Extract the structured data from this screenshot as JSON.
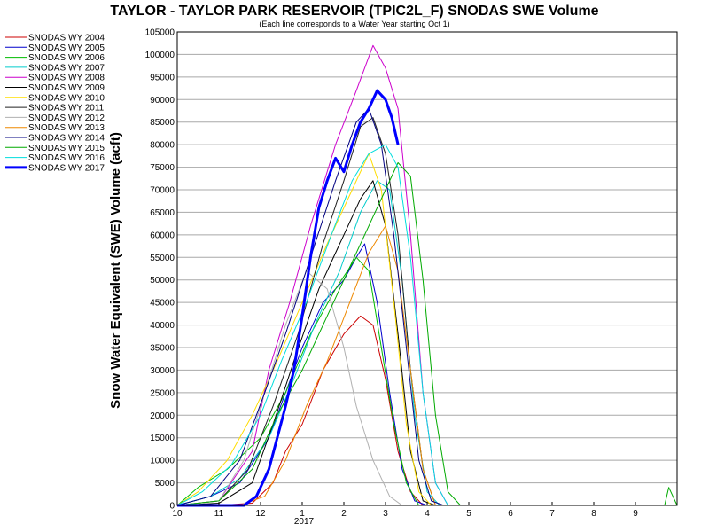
{
  "chart_data": {
    "type": "line",
    "title": "TAYLOR - TAYLOR PARK RESERVOIR (TPIC2L_F) SNODAS SWE Volume",
    "subtitle": "(Each line corresponds to a Water Year starting Oct 1)",
    "xlabel": "",
    "ylabel": "Snow Water Equivalent (SWE) Volume (acft)",
    "ylim": [
      0,
      105000
    ],
    "y_ticks": [
      0,
      5000,
      10000,
      15000,
      20000,
      25000,
      30000,
      35000,
      40000,
      45000,
      50000,
      55000,
      60000,
      65000,
      70000,
      75000,
      80000,
      85000,
      90000,
      95000,
      100000,
      105000
    ],
    "x_ticks": [
      "10",
      "11",
      "12",
      "1",
      "2",
      "3",
      "4",
      "5",
      "6",
      "7",
      "8",
      "9"
    ],
    "x_year_label": "2017",
    "grid": true,
    "legend_position": "left",
    "series": [
      {
        "name": "SNODAS WY 2004",
        "color": "#cc0000",
        "width": 1,
        "points": [
          [
            0,
            0
          ],
          [
            1,
            0
          ],
          [
            1.8,
            500
          ],
          [
            2.3,
            5000
          ],
          [
            2.6,
            12000
          ],
          [
            3,
            18000
          ],
          [
            3.5,
            30000
          ],
          [
            4,
            38000
          ],
          [
            4.4,
            42000
          ],
          [
            4.7,
            40000
          ],
          [
            5,
            28000
          ],
          [
            5.3,
            12000
          ],
          [
            5.6,
            3000
          ],
          [
            5.9,
            0
          ],
          [
            12,
            0
          ]
        ]
      },
      {
        "name": "SNODAS WY 2005",
        "color": "#0000cc",
        "width": 1,
        "points": [
          [
            0,
            0
          ],
          [
            0.8,
            2000
          ],
          [
            1.5,
            5000
          ],
          [
            2.2,
            15000
          ],
          [
            2.6,
            25000
          ],
          [
            3,
            35000
          ],
          [
            3.5,
            45000
          ],
          [
            4,
            50000
          ],
          [
            4.3,
            55000
          ],
          [
            4.5,
            58000
          ],
          [
            4.8,
            45000
          ],
          [
            5.1,
            25000
          ],
          [
            5.4,
            8000
          ],
          [
            5.7,
            1000
          ],
          [
            6,
            0
          ],
          [
            12,
            0
          ]
        ]
      },
      {
        "name": "SNODAS WY 2006",
        "color": "#00bb00",
        "width": 1,
        "points": [
          [
            0,
            0
          ],
          [
            0.5,
            4000
          ],
          [
            1.2,
            8000
          ],
          [
            2,
            15000
          ],
          [
            2.6,
            25000
          ],
          [
            3.2,
            38000
          ],
          [
            3.8,
            48000
          ],
          [
            4.3,
            55000
          ],
          [
            4.6,
            52000
          ],
          [
            4.9,
            35000
          ],
          [
            5.2,
            18000
          ],
          [
            5.5,
            5000
          ],
          [
            5.8,
            0
          ],
          [
            12,
            0
          ]
        ]
      },
      {
        "name": "SNODAS WY 2007",
        "color": "#00cccc",
        "width": 1,
        "points": [
          [
            0,
            0
          ],
          [
            0.8,
            2000
          ],
          [
            1.5,
            6000
          ],
          [
            2.2,
            15000
          ],
          [
            2.8,
            28000
          ],
          [
            3.3,
            40000
          ],
          [
            3.9,
            52000
          ],
          [
            4.4,
            65000
          ],
          [
            4.8,
            72000
          ],
          [
            5.1,
            70000
          ],
          [
            5.4,
            50000
          ],
          [
            5.7,
            20000
          ],
          [
            6,
            3000
          ],
          [
            6.3,
            0
          ],
          [
            12,
            0
          ]
        ]
      },
      {
        "name": "SNODAS WY 2008",
        "color": "#cc00cc",
        "width": 1,
        "points": [
          [
            0,
            0
          ],
          [
            1,
            1000
          ],
          [
            1.8,
            12000
          ],
          [
            2.2,
            30000
          ],
          [
            2.7,
            45000
          ],
          [
            3.2,
            62000
          ],
          [
            3.8,
            80000
          ],
          [
            4.3,
            92000
          ],
          [
            4.7,
            102000
          ],
          [
            5,
            97000
          ],
          [
            5.3,
            88000
          ],
          [
            5.6,
            60000
          ],
          [
            5.9,
            25000
          ],
          [
            6.2,
            5000
          ],
          [
            6.5,
            0
          ],
          [
            12,
            0
          ]
        ]
      },
      {
        "name": "SNODAS WY 2009",
        "color": "#000000",
        "width": 1,
        "points": [
          [
            0,
            0
          ],
          [
            1,
            500
          ],
          [
            1.8,
            5000
          ],
          [
            2.3,
            18000
          ],
          [
            2.8,
            32000
          ],
          [
            3.4,
            48000
          ],
          [
            4,
            60000
          ],
          [
            4.4,
            68000
          ],
          [
            4.7,
            72000
          ],
          [
            5,
            62000
          ],
          [
            5.3,
            38000
          ],
          [
            5.6,
            12000
          ],
          [
            5.9,
            1000
          ],
          [
            6.2,
            0
          ],
          [
            12,
            0
          ]
        ]
      },
      {
        "name": "SNODAS WY 2010",
        "color": "#ffdd00",
        "width": 1,
        "points": [
          [
            0,
            0
          ],
          [
            0.5,
            3000
          ],
          [
            1.2,
            10000
          ],
          [
            1.8,
            20000
          ],
          [
            2.4,
            32000
          ],
          [
            3,
            45000
          ],
          [
            3.6,
            58000
          ],
          [
            4.2,
            70000
          ],
          [
            4.6,
            78000
          ],
          [
            4.9,
            70000
          ],
          [
            5.2,
            45000
          ],
          [
            5.5,
            18000
          ],
          [
            5.8,
            3000
          ],
          [
            6.1,
            0
          ],
          [
            12,
            0
          ]
        ]
      },
      {
        "name": "SNODAS WY 2011",
        "color": "#222222",
        "width": 1,
        "points": [
          [
            0,
            0
          ],
          [
            1,
            1000
          ],
          [
            1.7,
            8000
          ],
          [
            2.3,
            22000
          ],
          [
            2.9,
            38000
          ],
          [
            3.5,
            58000
          ],
          [
            4,
            72000
          ],
          [
            4.4,
            84000
          ],
          [
            4.7,
            86000
          ],
          [
            5,
            78000
          ],
          [
            5.3,
            60000
          ],
          [
            5.6,
            30000
          ],
          [
            5.9,
            8000
          ],
          [
            6.2,
            0
          ],
          [
            12,
            0
          ]
        ]
      },
      {
        "name": "SNODAS WY 2012",
        "color": "#b0b0b0",
        "width": 1,
        "points": [
          [
            0,
            0
          ],
          [
            1,
            1000
          ],
          [
            1.6,
            10000
          ],
          [
            2.1,
            25000
          ],
          [
            2.6,
            40000
          ],
          [
            3.1,
            52000
          ],
          [
            3.6,
            48000
          ],
          [
            4,
            35000
          ],
          [
            4.3,
            22000
          ],
          [
            4.7,
            10000
          ],
          [
            5.1,
            2000
          ],
          [
            5.4,
            0
          ],
          [
            12,
            0
          ]
        ]
      },
      {
        "name": "SNODAS WY 2013",
        "color": "#ee8800",
        "width": 1,
        "points": [
          [
            0,
            0
          ],
          [
            1.5,
            0
          ],
          [
            2.1,
            2000
          ],
          [
            2.6,
            10000
          ],
          [
            3.1,
            22000
          ],
          [
            3.6,
            32000
          ],
          [
            4.1,
            44000
          ],
          [
            4.6,
            56000
          ],
          [
            5,
            62000
          ],
          [
            5.3,
            52000
          ],
          [
            5.6,
            30000
          ],
          [
            5.9,
            8000
          ],
          [
            6.2,
            0
          ],
          [
            12,
            0
          ]
        ]
      },
      {
        "name": "SNODAS WY 2014",
        "color": "#000080",
        "width": 1,
        "points": [
          [
            0,
            0
          ],
          [
            0.8,
            2000
          ],
          [
            1.5,
            10000
          ],
          [
            2.1,
            25000
          ],
          [
            2.6,
            38000
          ],
          [
            3.2,
            55000
          ],
          [
            3.8,
            72000
          ],
          [
            4.3,
            85000
          ],
          [
            4.6,
            88000
          ],
          [
            4.9,
            80000
          ],
          [
            5.2,
            60000
          ],
          [
            5.5,
            35000
          ],
          [
            5.8,
            10000
          ],
          [
            6.1,
            1000
          ],
          [
            6.4,
            0
          ],
          [
            12,
            0
          ]
        ]
      },
      {
        "name": "SNODAS WY 2015",
        "color": "#00aa00",
        "width": 1,
        "points": [
          [
            0,
            0
          ],
          [
            1,
            1000
          ],
          [
            1.8,
            8000
          ],
          [
            2.4,
            20000
          ],
          [
            3,
            30000
          ],
          [
            3.6,
            42000
          ],
          [
            4.1,
            52000
          ],
          [
            4.6,
            62000
          ],
          [
            5,
            70000
          ],
          [
            5.3,
            76000
          ],
          [
            5.6,
            73000
          ],
          [
            5.9,
            50000
          ],
          [
            6.2,
            20000
          ],
          [
            6.5,
            3000
          ],
          [
            6.8,
            0
          ],
          [
            11.7,
            0
          ],
          [
            11.8,
            4000
          ],
          [
            11.9,
            2000
          ],
          [
            12,
            0
          ]
        ]
      },
      {
        "name": "SNODAS WY 2016",
        "color": "#00dddd",
        "width": 1,
        "points": [
          [
            0,
            0
          ],
          [
            0.6,
            3000
          ],
          [
            1.3,
            9000
          ],
          [
            2,
            20000
          ],
          [
            2.5,
            32000
          ],
          [
            3.1,
            45000
          ],
          [
            3.7,
            60000
          ],
          [
            4.2,
            72000
          ],
          [
            4.6,
            78000
          ],
          [
            5,
            80000
          ],
          [
            5.3,
            75000
          ],
          [
            5.6,
            55000
          ],
          [
            5.9,
            25000
          ],
          [
            6.2,
            5000
          ],
          [
            6.5,
            0
          ],
          [
            12,
            0
          ]
        ]
      },
      {
        "name": "SNODAS WY 2017",
        "color": "#0000ff",
        "width": 3,
        "points": [
          [
            0,
            0
          ],
          [
            1.6,
            0
          ],
          [
            1.9,
            2000
          ],
          [
            2.2,
            8000
          ],
          [
            2.4,
            15000
          ],
          [
            2.6,
            22000
          ],
          [
            2.8,
            30000
          ],
          [
            3,
            42000
          ],
          [
            3.2,
            55000
          ],
          [
            3.4,
            66000
          ],
          [
            3.6,
            72000
          ],
          [
            3.8,
            77000
          ],
          [
            4,
            74000
          ],
          [
            4.2,
            80000
          ],
          [
            4.4,
            85000
          ],
          [
            4.6,
            88000
          ],
          [
            4.8,
            92000
          ],
          [
            5,
            90000
          ],
          [
            5.15,
            86000
          ],
          [
            5.3,
            80000
          ]
        ]
      }
    ]
  }
}
